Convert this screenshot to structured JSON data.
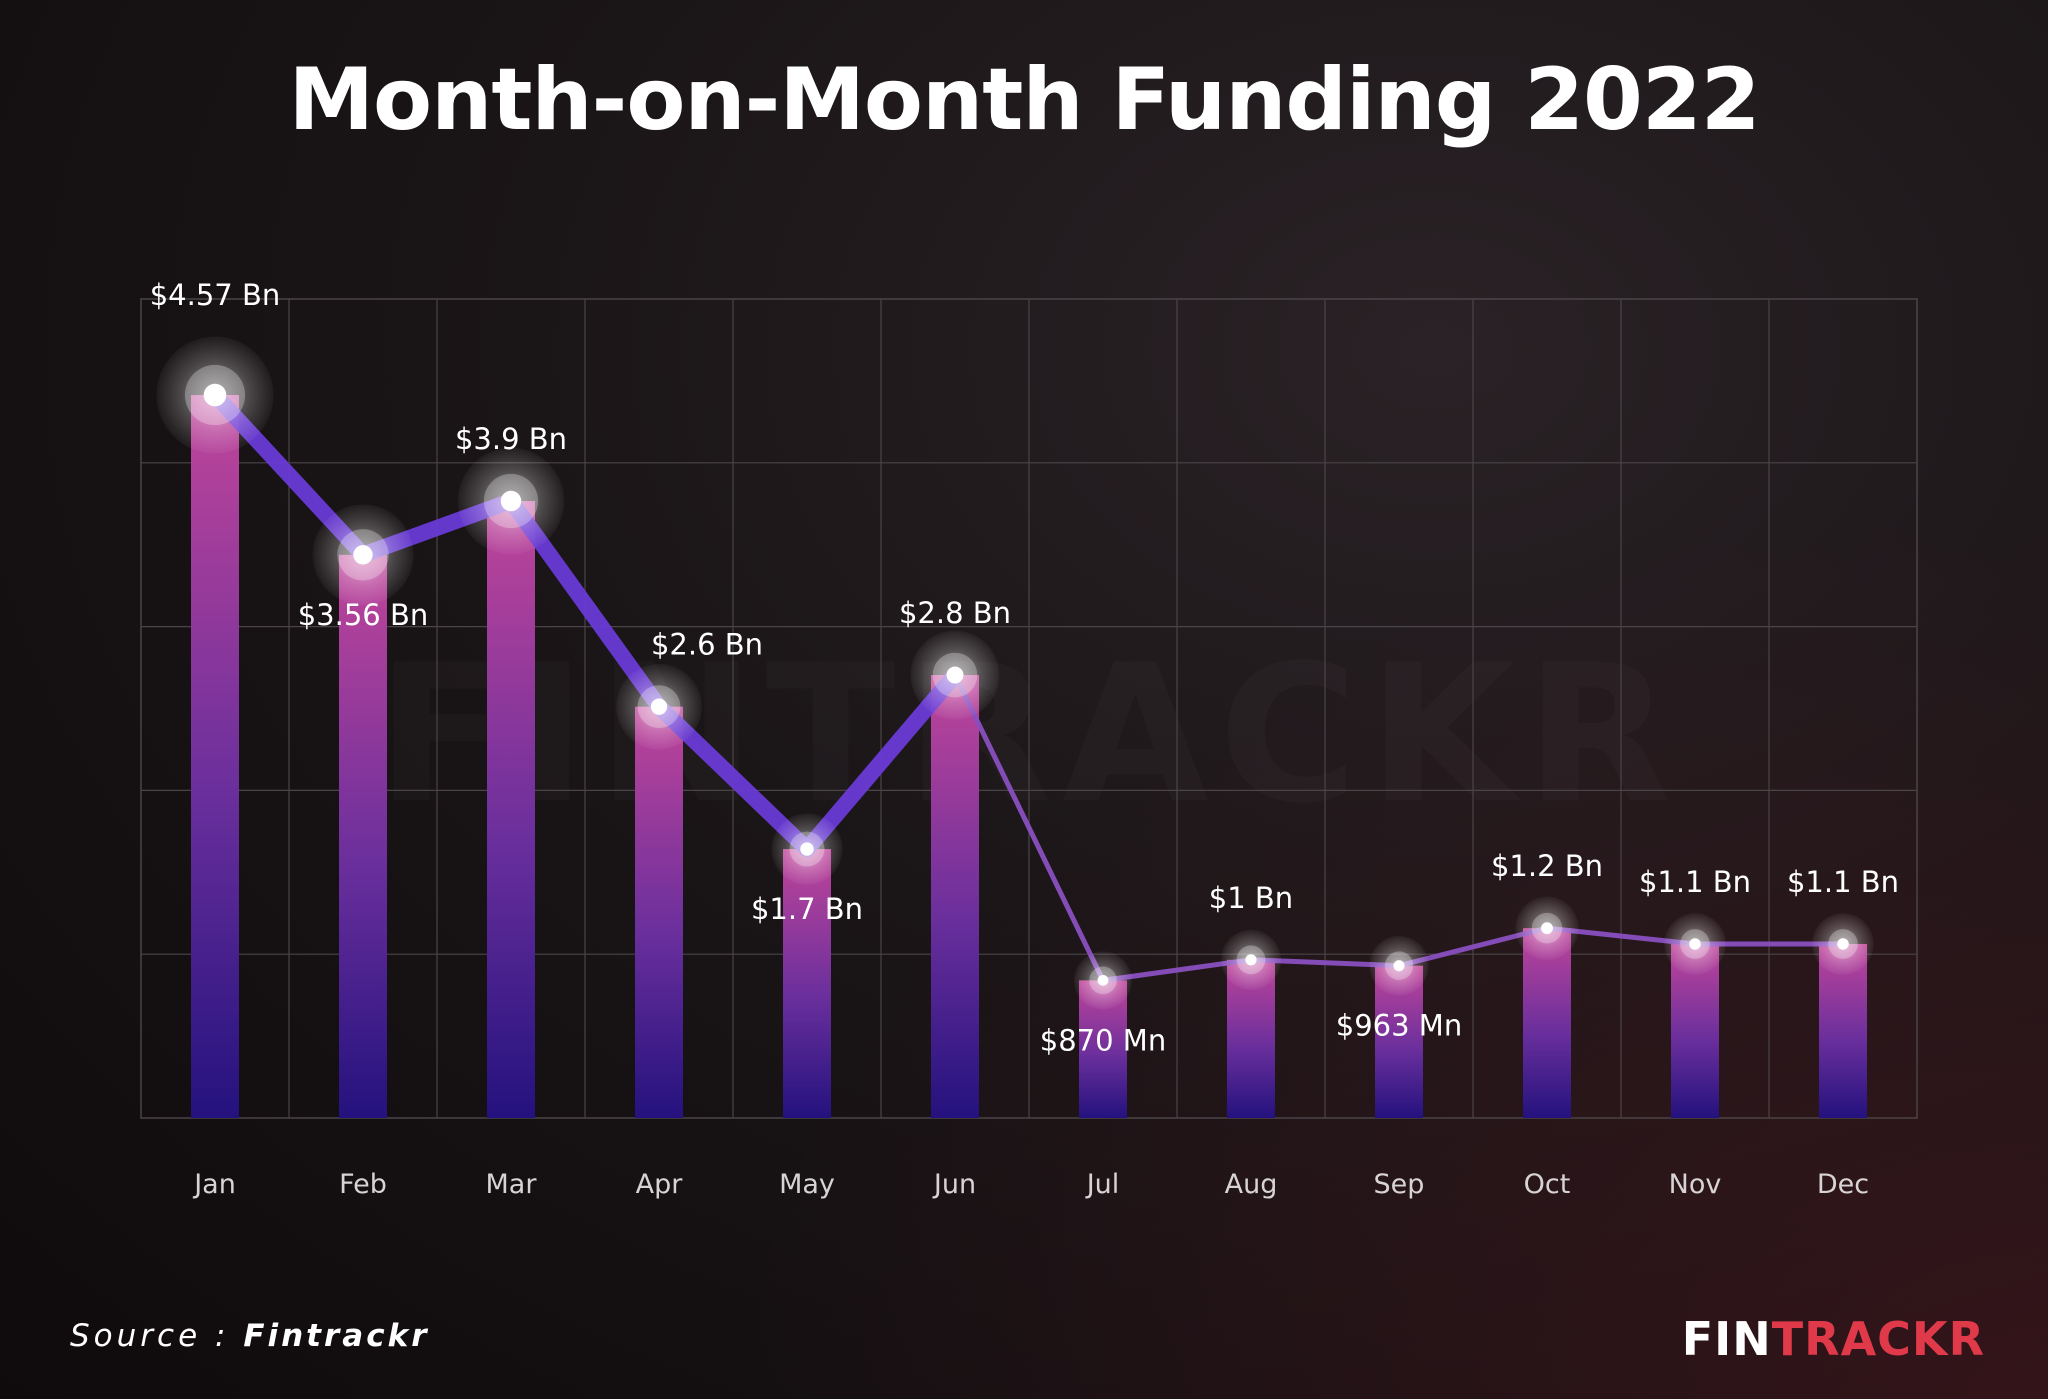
{
  "title": "Month-on-Month Funding 2022",
  "source": {
    "label": "Source : ",
    "name": "Fintrackr"
  },
  "brand": {
    "part1": "FIN",
    "part2": "TRACKR"
  },
  "colors": {
    "bar_top": "#c0459a",
    "bar_bottom": "#24127e",
    "line": "#6a3ad6",
    "line_thin": "#8a4fc0",
    "brand_red": "#e03a4a",
    "grid": "#4a4448"
  },
  "chart_data": {
    "type": "bar",
    "categories": [
      "Jan",
      "Feb",
      "Mar",
      "Apr",
      "May",
      "Jun",
      "Jul",
      "Aug",
      "Sep",
      "Oct",
      "Nov",
      "Dec"
    ],
    "values": [
      4.57,
      3.56,
      3.9,
      2.6,
      1.7,
      2.8,
      0.87,
      1.0,
      0.963,
      1.2,
      1.1,
      1.1
    ],
    "units": "USD Bn",
    "data_labels": [
      "$4.57 Bn",
      "$3.56 Bn",
      "$3.9 Bn",
      "$2.6 Bn",
      "$1.7 Bn",
      "$2.8 Bn",
      "$870 Mn",
      "$1 Bn",
      "$963 Mn",
      "$1.2 Bn",
      "$1.1 Bn",
      "$1.1 Bn"
    ],
    "overlay_line": true,
    "grid": true,
    "ylim": [
      0,
      5
    ]
  }
}
